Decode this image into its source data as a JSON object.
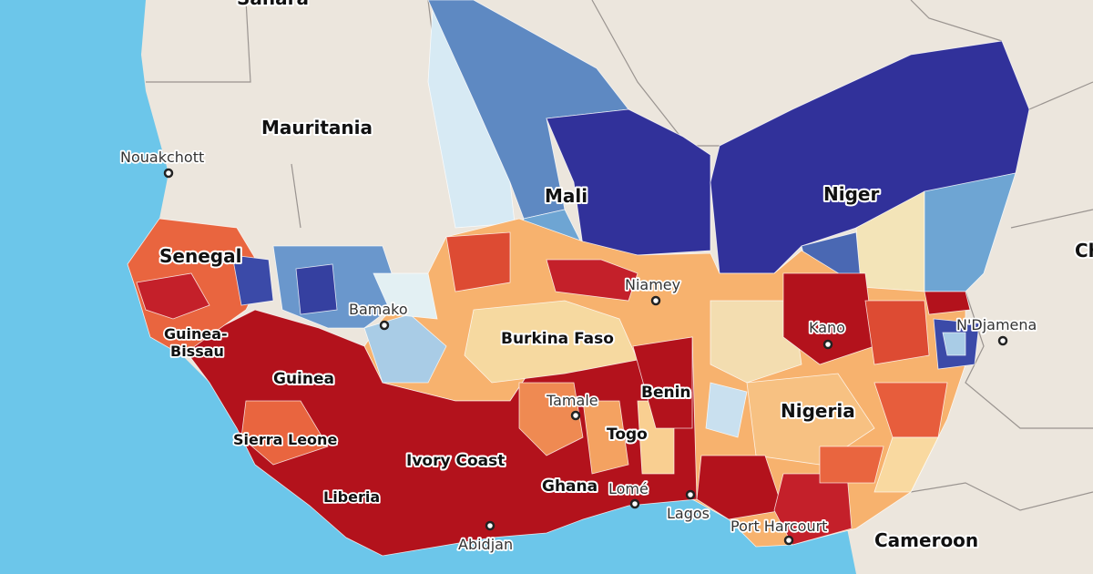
{
  "countries": [
    "Sahara",
    "Mauritania",
    "Mali",
    "Niger",
    "Senegal",
    "Guinea-",
    "Bissau",
    "Guinea",
    "Sierra Leone",
    "Liberia",
    "Ivory Coast",
    "Ghana",
    "Burkina Faso",
    "Burkina Faso",
    "Togo",
    "Benin",
    "Nigeria",
    "Cameroon",
    "Ch"
  ],
  "cities": [
    "Nouakchott",
    "Bamako",
    "Niamey",
    "Tamale",
    "Kano",
    "N'Djamena",
    "Abidjan",
    "Lomé",
    "Lagos",
    "Port Harcourt"
  ]
}
